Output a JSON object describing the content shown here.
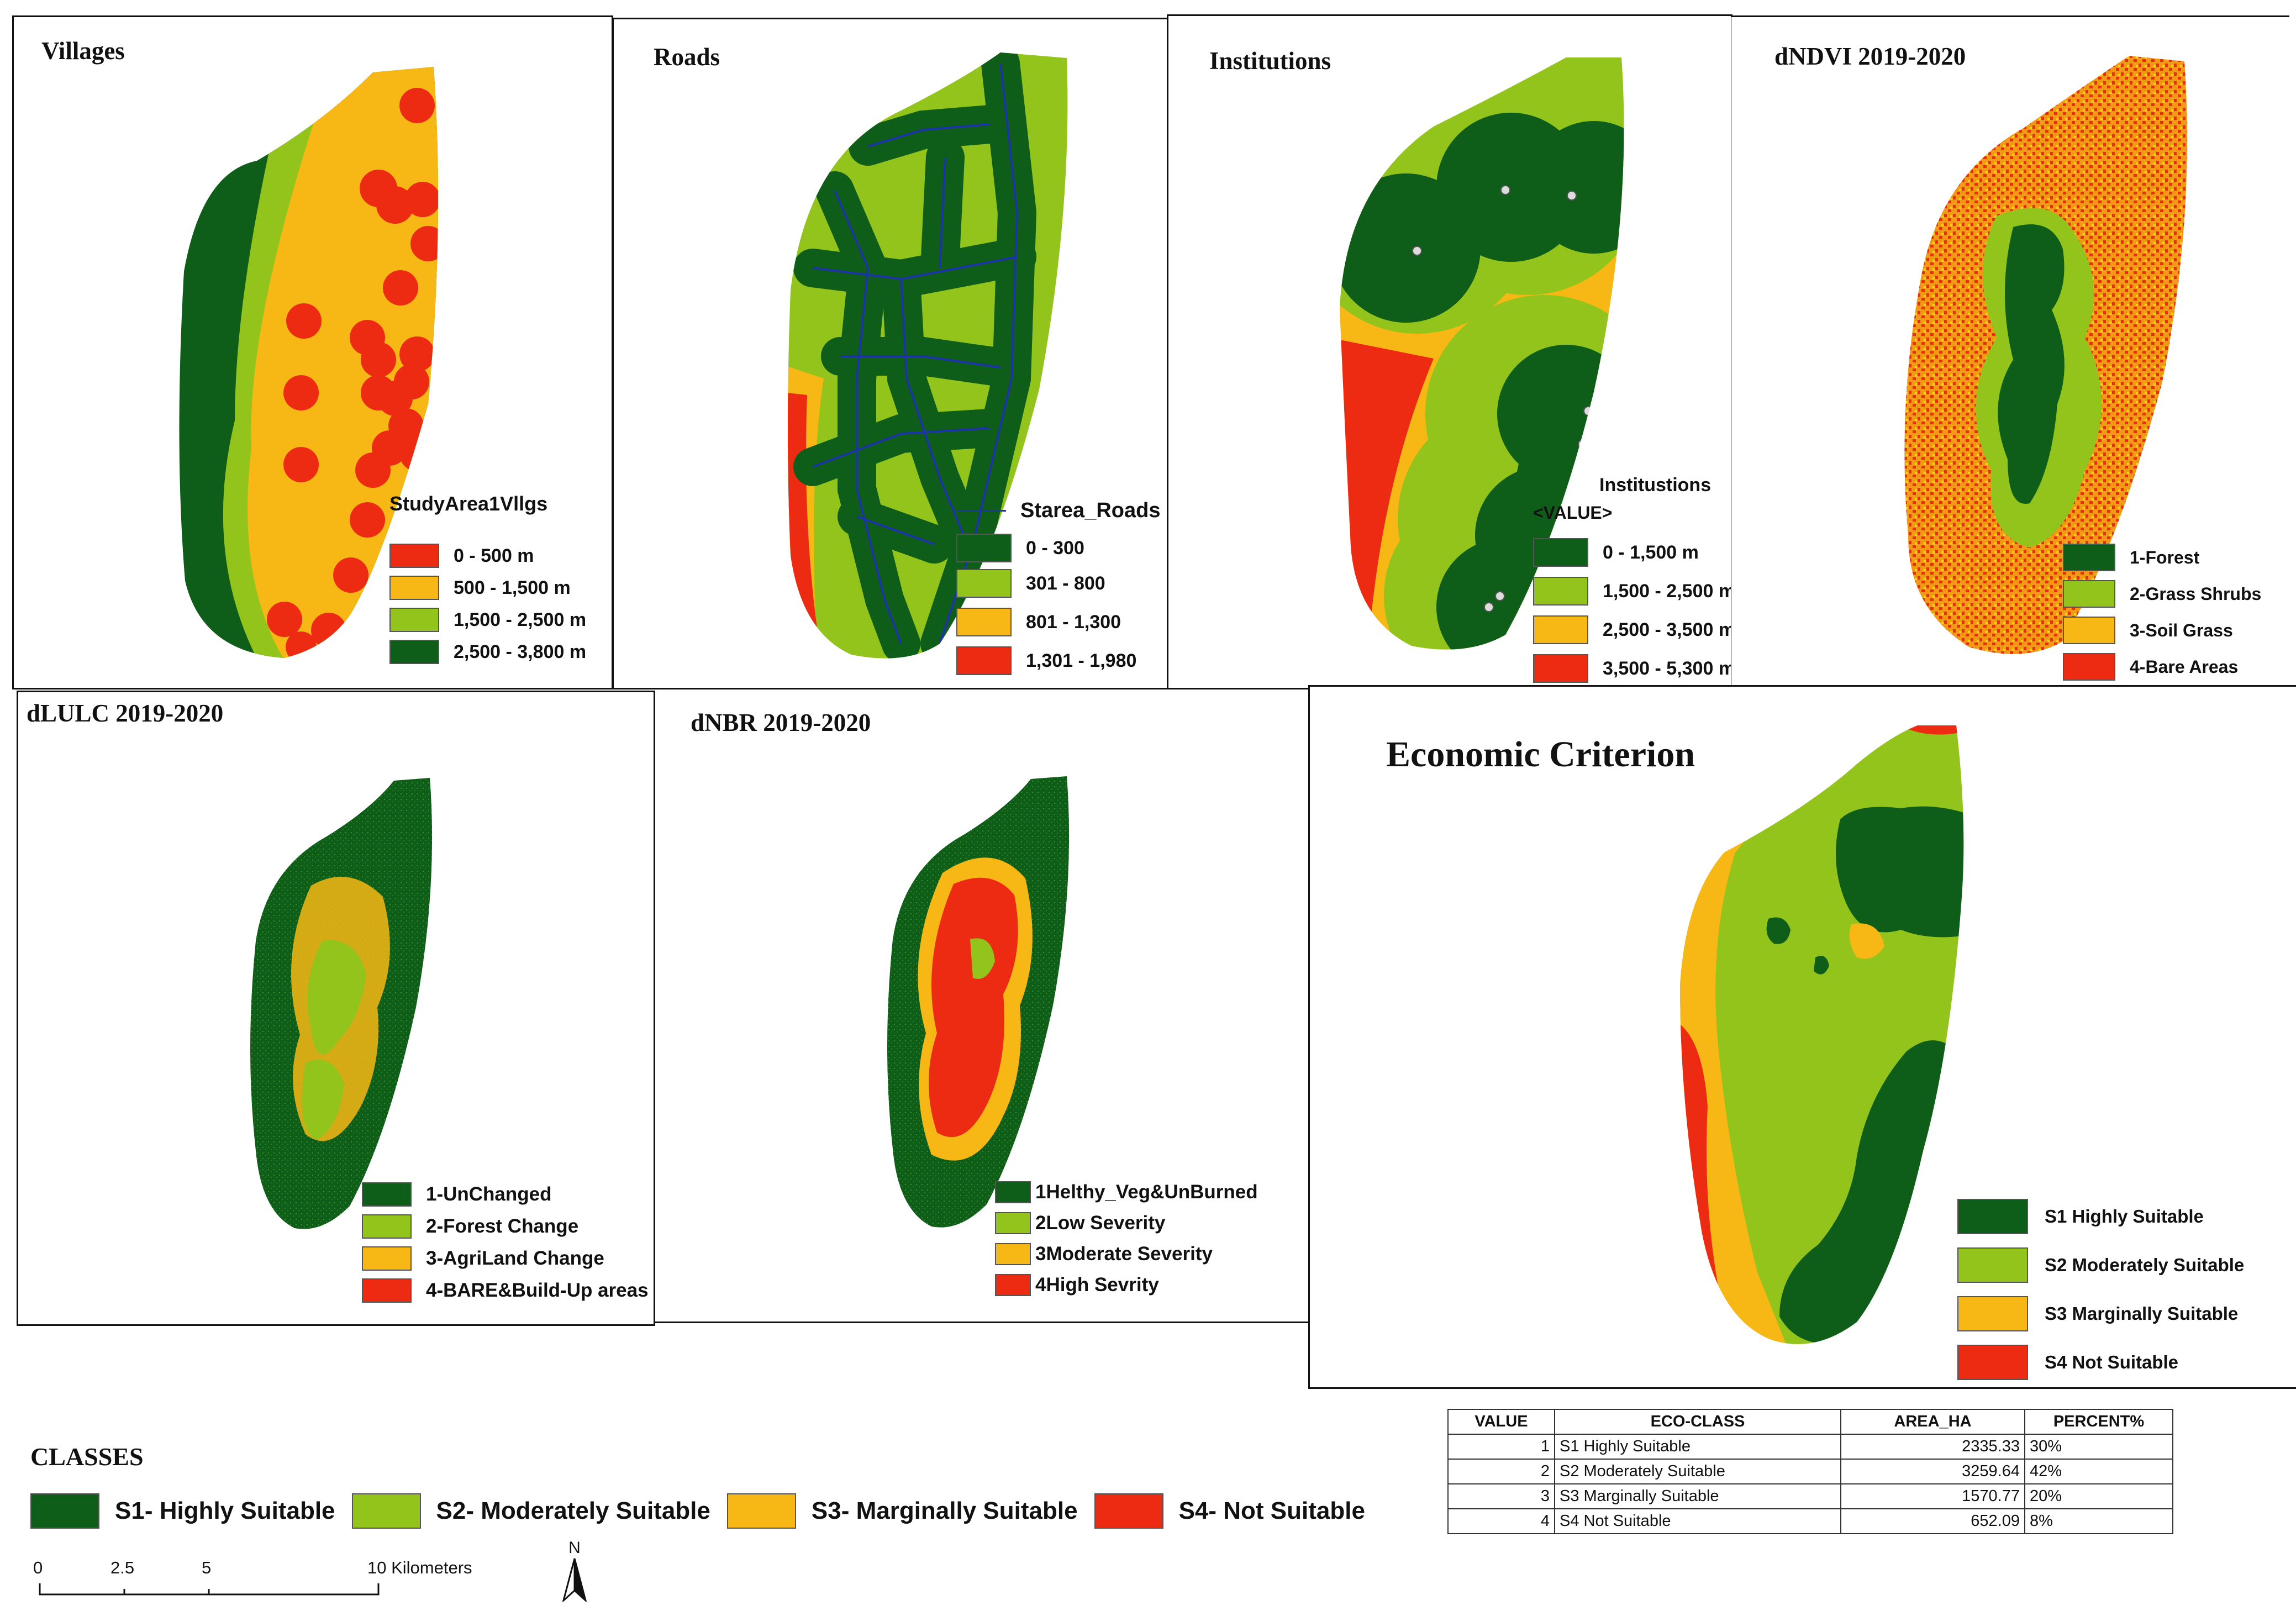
{
  "colors": {
    "dark_green": "#0e5e1a",
    "light_green": "#92c41b",
    "yellow": "#f7b715",
    "red": "#ec2b12",
    "blue": "#1c34a8"
  },
  "panels": {
    "villages": {
      "title": "Villages",
      "legend_title": "StudyArea1Vllgs",
      "items": [
        {
          "label": "0 - 500 m",
          "color": "#ec2b12"
        },
        {
          "label": "500 - 1,500 m",
          "color": "#f7b715"
        },
        {
          "label": "1,500 - 2,500 m",
          "color": "#92c41b"
        },
        {
          "label": "2,500 - 3,800 m",
          "color": "#0e5e1a"
        }
      ]
    },
    "roads": {
      "title": "Roads",
      "legend_title": "Starea_Roads",
      "items": [
        {
          "label": "0 - 300",
          "color": "#0e5e1a"
        },
        {
          "label": "301 - 800",
          "color": "#92c41b"
        },
        {
          "label": "801 - 1,300",
          "color": "#f7b715"
        },
        {
          "label": "1,301 - 1,980",
          "color": "#ec2b12"
        }
      ]
    },
    "institutions": {
      "title": "Institutions",
      "legend_title": "Institustions",
      "legend_subtitle": "<VALUE>",
      "items": [
        {
          "label": "0 - 1,500 m",
          "color": "#0e5e1a"
        },
        {
          "label": "1,500 - 2,500 m",
          "color": "#92c41b"
        },
        {
          "label": "2,500 - 3,500 m",
          "color": "#f7b715"
        },
        {
          "label": "3,500 - 5,300 m",
          "color": "#ec2b12"
        }
      ]
    },
    "dndvi": {
      "title": "dNDVI 2019-2020",
      "items": [
        {
          "label": "1-Forest",
          "color": "#0e5e1a"
        },
        {
          "label": "2-Grass Shrubs",
          "color": "#92c41b"
        },
        {
          "label": "3-Soil Grass",
          "color": "#f7b715"
        },
        {
          "label": "4-Bare Areas",
          "color": "#ec2b12"
        }
      ]
    },
    "dlulc": {
      "title": "dLULC 2019-2020",
      "items": [
        {
          "label": "1-UnChanged",
          "color": "#0e5e1a"
        },
        {
          "label": "2-Forest Change",
          "color": "#92c41b"
        },
        {
          "label": "3-AgriLand Change",
          "color": "#f7b715"
        },
        {
          "label": "4-BARE&Build-Up areas",
          "color": "#ec2b12"
        }
      ]
    },
    "dnbr": {
      "title": "dNBR 2019-2020",
      "items": [
        {
          "label": "1Helthy_Veg&UnBurned",
          "color": "#0e5e1a"
        },
        {
          "label": "2Low Severity",
          "color": "#92c41b"
        },
        {
          "label": "3Moderate Severity",
          "color": "#f7b715"
        },
        {
          "label": "4High Sevrity",
          "color": "#ec2b12"
        }
      ]
    },
    "economic": {
      "title": "Economic Criterion",
      "items": [
        {
          "label": "S1 Highly Suitable",
          "color": "#0e5e1a"
        },
        {
          "label": "S2 Moderately Suitable",
          "color": "#92c41b"
        },
        {
          "label": "S3 Marginally Suitable",
          "color": "#f7b715"
        },
        {
          "label": "S4 Not Suitable",
          "color": "#ec2b12"
        }
      ]
    }
  },
  "classes": {
    "title": "CLASSES",
    "items": [
      {
        "label": "S1- Highly Suitable",
        "color": "#0e5e1a"
      },
      {
        "label": "S2- Moderately Suitable",
        "color": "#92c41b"
      },
      {
        "label": "S3- Marginally Suitable",
        "color": "#f7b715"
      },
      {
        "label": "S4- Not Suitable",
        "color": "#ec2b12"
      }
    ]
  },
  "table": {
    "headers": [
      "VALUE",
      "ECO-CLASS",
      "AREA_HA",
      "PERCENT%"
    ],
    "rows": [
      [
        "1",
        "S1 Highly Suitable",
        "2335.33",
        "30%"
      ],
      [
        "2",
        "S2 Moderately Suitable",
        "3259.64",
        "42%"
      ],
      [
        "3",
        "S3 Marginally Suitable",
        "1570.77",
        "20%"
      ],
      [
        "4",
        "S4 Not Suitable",
        "652.09",
        "8%"
      ]
    ]
  },
  "scale_bar": {
    "ticks": [
      "0",
      "2.5",
      "5",
      "10 Kilometers"
    ],
    "north_label": "N"
  }
}
